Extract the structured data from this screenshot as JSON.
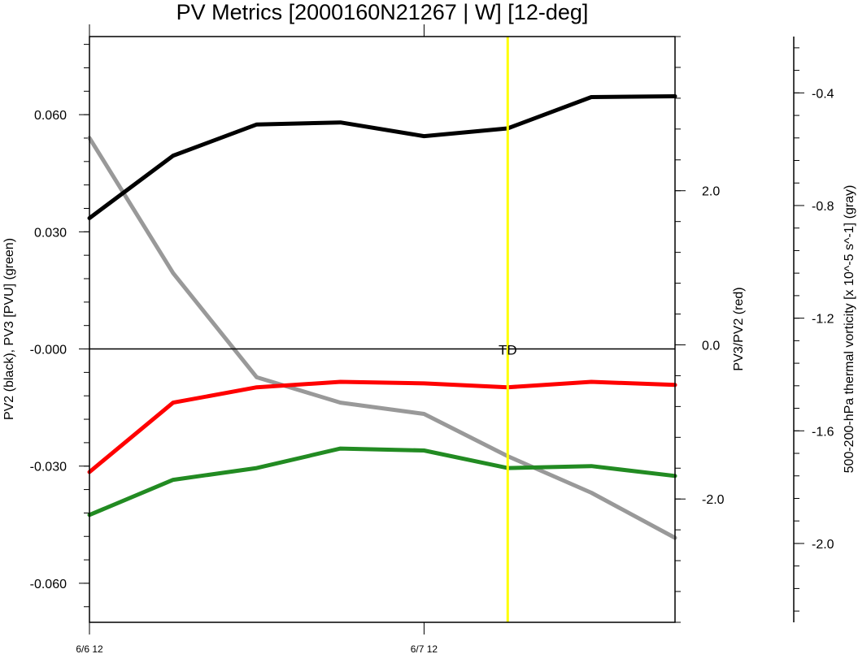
{
  "chart_data": {
    "type": "line",
    "title": "PV Metrics [2000160N21267 | W] [12-deg]",
    "x": [
      0,
      1,
      2,
      3,
      4,
      5,
      6,
      7
    ],
    "x_tick_labels": [
      "6/6 12",
      "6/7 12"
    ],
    "x_tick_positions": [
      0,
      4
    ],
    "xlim": [
      0,
      7
    ],
    "annotation": {
      "text": "TD",
      "x": 5
    },
    "vertical_marker": {
      "x": 5,
      "color": "#ffff00"
    },
    "axes": {
      "left": {
        "label": "PV2 (black), PV3 [PVU] (green)",
        "ylim": [
          -0.07,
          0.08
        ],
        "ticks": [
          0.06,
          0.03,
          0.0,
          -0.03,
          -0.06
        ],
        "tick_labels": [
          "0.060",
          "0.030",
          "-0.000",
          "-0.030",
          "-0.060"
        ],
        "minor_step": 0.006
      },
      "right1": {
        "label": "PV3/PV2 (red)",
        "ylim": [
          -3.6,
          4.0
        ],
        "ticks": [
          2.0,
          0.0,
          -2.0
        ],
        "tick_labels": [
          "2.0",
          "0.0",
          "-2.0"
        ],
        "minor_step": 0.4
      },
      "right2": {
        "label": "500-200-hPa thermal vorticity [x 10^-5 s^-1] (gray)",
        "ylim": [
          -2.28,
          -0.2
        ],
        "ticks": [
          -0.4,
          -0.8,
          -1.2,
          -1.6,
          -2.0
        ],
        "tick_labels": [
          "-0.4",
          "-0.8",
          "-1.2",
          "-1.6",
          "-2.0"
        ],
        "minor_step": 0.08
      }
    },
    "zero_line": {
      "axis": "left",
      "y": 0.0
    },
    "series": [
      {
        "name": "PV2",
        "axis": "left",
        "color": "#000000",
        "values": [
          0.0335,
          0.0495,
          0.0575,
          0.058,
          0.0545,
          0.0565,
          0.0645,
          0.0647
        ]
      },
      {
        "name": "PV3",
        "axis": "left",
        "color": "#228b22",
        "values": [
          -0.0425,
          -0.0335,
          -0.0305,
          -0.0255,
          -0.026,
          -0.0305,
          -0.03,
          -0.0325
        ]
      },
      {
        "name": "PV3/PV2",
        "axis": "right1",
        "color": "#ff0000",
        "values": [
          -1.65,
          -0.75,
          -0.55,
          -0.48,
          -0.5,
          -0.55,
          -0.48,
          -0.52
        ]
      },
      {
        "name": "500-200-hPa thermal vorticity",
        "axis": "right2",
        "color": "#999999",
        "values": [
          -0.56,
          -1.04,
          -1.41,
          -1.5,
          -1.54,
          -1.69,
          -1.82,
          -1.98
        ]
      }
    ]
  }
}
